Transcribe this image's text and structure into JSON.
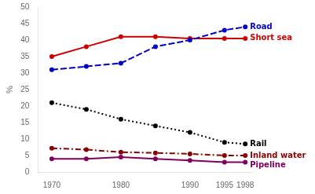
{
  "chart_data": {
    "type": "line",
    "y_label": "%",
    "x": [
      1970,
      1975,
      1980,
      1985,
      1990,
      1995,
      1998
    ],
    "series": [
      {
        "name": "Road",
        "color": "#0000CC",
        "line_style": "dashed",
        "values": [
          31,
          32,
          33,
          38,
          40,
          43,
          44
        ]
      },
      {
        "name": "Short sea",
        "color": "#CC0000",
        "line_style": "solid",
        "values": [
          35,
          38,
          41,
          41,
          40.5,
          40.5,
          40.5
        ]
      },
      {
        "name": "Rail",
        "color": "#000000",
        "line_style": "dotted",
        "values": [
          21,
          19,
          16,
          14,
          12,
          9,
          8.5
        ]
      },
      {
        "name": "Inland water",
        "color": "#8B0000",
        "line_style": "dashdot",
        "values": [
          7.2,
          6.8,
          6.0,
          5.8,
          5.5,
          5.0,
          5.0
        ]
      },
      {
        "name": "Pipeline",
        "color": "#800060",
        "line_style": "solid",
        "values": [
          4.0,
          4.0,
          4.5,
          4.0,
          3.5,
          3.0,
          3.0
        ]
      }
    ],
    "xlim": [
      1968,
      1999
    ],
    "xticks": [
      1970,
      1980,
      1990,
      1995,
      1998
    ],
    "ylim": [
      0,
      50
    ],
    "yticks": [
      0,
      5,
      10,
      15,
      20,
      25,
      30,
      35,
      40,
      45,
      50
    ],
    "grid": false,
    "legend": false
  }
}
